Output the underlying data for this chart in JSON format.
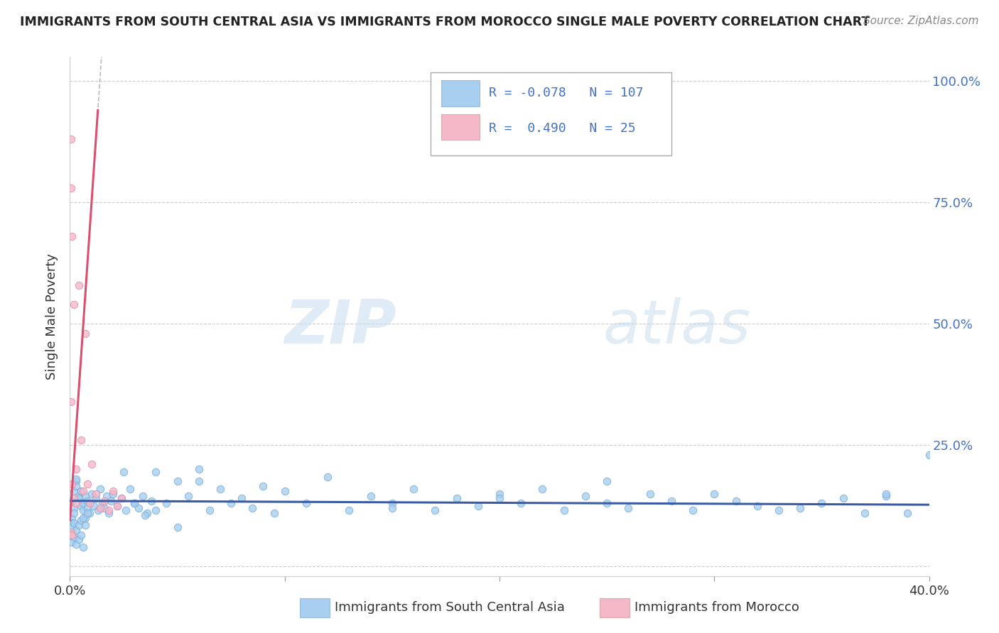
{
  "title": "IMMIGRANTS FROM SOUTH CENTRAL ASIA VS IMMIGRANTS FROM MOROCCO SINGLE MALE POVERTY CORRELATION CHART",
  "source": "Source: ZipAtlas.com",
  "xlabel_blue": "Immigrants from South Central Asia",
  "xlabel_pink": "Immigrants from Morocco",
  "ylabel": "Single Male Poverty",
  "R_blue": -0.078,
  "N_blue": 107,
  "R_pink": 0.49,
  "N_pink": 25,
  "xlim": [
    0.0,
    0.4
  ],
  "ylim": [
    -0.02,
    1.05
  ],
  "color_blue": "#A8CFEF",
  "color_pink": "#F5B8C8",
  "trendline_blue": "#3B5BA5",
  "trendline_pink": "#D94F70",
  "trendline_gray": "#BBBBBB",
  "watermark_zip": "ZIP",
  "watermark_atlas": "atlas",
  "blue_x": [
    0.002,
    0.001,
    0.003,
    0.002,
    0.001,
    0.004,
    0.003,
    0.002,
    0.001,
    0.003,
    0.005,
    0.004,
    0.006,
    0.005,
    0.007,
    0.006,
    0.008,
    0.007,
    0.009,
    0.008,
    0.01,
    0.011,
    0.012,
    0.013,
    0.014,
    0.015,
    0.016,
    0.017,
    0.018,
    0.019,
    0.02,
    0.022,
    0.024,
    0.026,
    0.028,
    0.03,
    0.032,
    0.034,
    0.036,
    0.038,
    0.04,
    0.045,
    0.05,
    0.055,
    0.06,
    0.065,
    0.07,
    0.075,
    0.08,
    0.085,
    0.09,
    0.095,
    0.1,
    0.11,
    0.12,
    0.13,
    0.14,
    0.15,
    0.16,
    0.17,
    0.18,
    0.19,
    0.2,
    0.21,
    0.22,
    0.23,
    0.24,
    0.25,
    0.26,
    0.27,
    0.28,
    0.29,
    0.3,
    0.31,
    0.32,
    0.33,
    0.34,
    0.35,
    0.36,
    0.37,
    0.38,
    0.39,
    0.001,
    0.002,
    0.003,
    0.004,
    0.005,
    0.006,
    0.007,
    0.008,
    0.025,
    0.03,
    0.035,
    0.04,
    0.05,
    0.06,
    0.15,
    0.2,
    0.25,
    0.38,
    0.4,
    0.001,
    0.002,
    0.003,
    0.004,
    0.005,
    0.006
  ],
  "blue_y": [
    0.155,
    0.135,
    0.175,
    0.12,
    0.1,
    0.145,
    0.165,
    0.11,
    0.09,
    0.18,
    0.125,
    0.14,
    0.115,
    0.155,
    0.1,
    0.13,
    0.12,
    0.145,
    0.11,
    0.135,
    0.15,
    0.125,
    0.14,
    0.115,
    0.16,
    0.13,
    0.12,
    0.145,
    0.11,
    0.135,
    0.15,
    0.125,
    0.14,
    0.115,
    0.16,
    0.13,
    0.12,
    0.145,
    0.11,
    0.135,
    0.195,
    0.13,
    0.175,
    0.145,
    0.2,
    0.115,
    0.16,
    0.13,
    0.14,
    0.12,
    0.165,
    0.11,
    0.155,
    0.13,
    0.185,
    0.115,
    0.145,
    0.13,
    0.16,
    0.115,
    0.14,
    0.125,
    0.15,
    0.13,
    0.16,
    0.115,
    0.145,
    0.13,
    0.12,
    0.15,
    0.135,
    0.115,
    0.15,
    0.135,
    0.125,
    0.115,
    0.12,
    0.13,
    0.14,
    0.11,
    0.145,
    0.11,
    0.08,
    0.09,
    0.075,
    0.085,
    0.095,
    0.1,
    0.085,
    0.11,
    0.195,
    0.13,
    0.105,
    0.115,
    0.08,
    0.175,
    0.12,
    0.14,
    0.175,
    0.15,
    0.23,
    0.05,
    0.06,
    0.045,
    0.055,
    0.065,
    0.04
  ],
  "pink_x": [
    0.0005,
    0.0005,
    0.001,
    0.001,
    0.002,
    0.002,
    0.003,
    0.003,
    0.004,
    0.005,
    0.006,
    0.007,
    0.008,
    0.009,
    0.01,
    0.012,
    0.014,
    0.016,
    0.018,
    0.02,
    0.022,
    0.024,
    0.0005,
    0.0005,
    0.001
  ],
  "pink_y": [
    0.88,
    0.78,
    0.68,
    0.17,
    0.54,
    0.14,
    0.2,
    0.13,
    0.58,
    0.26,
    0.155,
    0.48,
    0.17,
    0.13,
    0.21,
    0.15,
    0.12,
    0.135,
    0.115,
    0.155,
    0.125,
    0.14,
    0.34,
    0.07,
    0.065
  ]
}
